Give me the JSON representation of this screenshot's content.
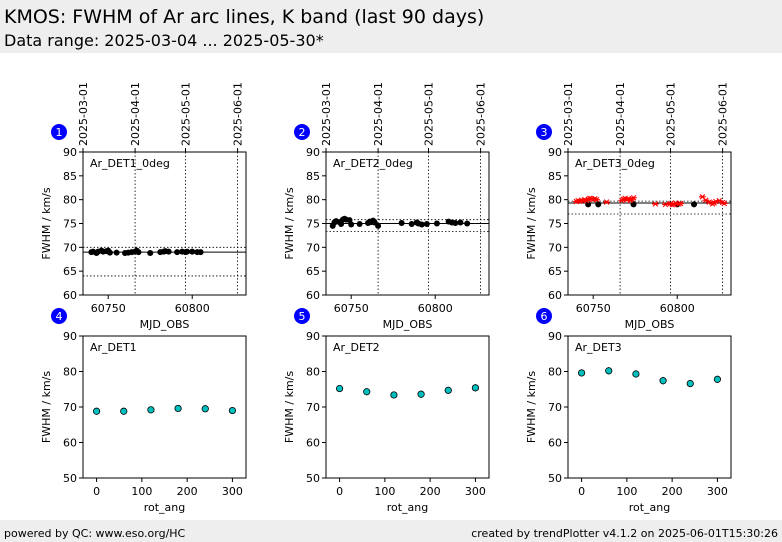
{
  "header": {
    "title": "KMOS: FWHM of Ar arc lines, K band (last 90 days)",
    "subtitle": "Data range: 2025-03-04 ... 2025-05-30*"
  },
  "footer": {
    "left": "powered by QC: www.eso.org/HC",
    "right": "created by trendPlotter v4.1.2 on 2025-06-01T15:30:26"
  },
  "colors": {
    "badge": "#0000ff",
    "points": "#000000",
    "outliers": "#ff0000",
    "ang_fill": "#00bfbf",
    "header_bg": "#eeeeee"
  },
  "chart_data": [
    {
      "type": "scatter",
      "badge": "1",
      "label": "Ar_DET1_0deg",
      "xlabel": "MJD_OBS",
      "ylabel": "FWHM / km/s",
      "xlim": [
        60735,
        60832
      ],
      "ylim": [
        60,
        90
      ],
      "xticks": [
        60750,
        60800
      ],
      "yticks": [
        60,
        65,
        70,
        75,
        80,
        85,
        90
      ],
      "date_ticks": [
        {
          "label": "2025-03-01",
          "mjd": 60735
        },
        {
          "label": "2025-04-01",
          "mjd": 60766
        },
        {
          "label": "2025-05-01",
          "mjd": 60796
        },
        {
          "label": "2025-06-01",
          "mjd": 60827
        }
      ],
      "ref_line": 69.0,
      "tol_lines": [
        64.0,
        70.0
      ],
      "points": [
        [
          60740,
          69.0
        ],
        [
          60741,
          69.1
        ],
        [
          60743,
          68.8
        ],
        [
          60744,
          69.1
        ],
        [
          60746,
          69.3
        ],
        [
          60747,
          69.1
        ],
        [
          60749,
          69.2
        ],
        [
          60750,
          69.3
        ],
        [
          60751,
          68.9
        ],
        [
          60755,
          68.9
        ],
        [
          60760,
          68.8
        ],
        [
          60762,
          68.9
        ],
        [
          60764,
          69.0
        ],
        [
          60766,
          69.1
        ],
        [
          60767,
          69.3
        ],
        [
          60768,
          69.0
        ],
        [
          60775,
          68.8
        ],
        [
          60781,
          69.0
        ],
        [
          60783,
          69.1
        ],
        [
          60784,
          69.2
        ],
        [
          60786,
          69.1
        ],
        [
          60791,
          69.0
        ],
        [
          60794,
          69.1
        ],
        [
          60796,
          69.0
        ],
        [
          60797,
          69.1
        ],
        [
          60800,
          69.1
        ],
        [
          60803,
          69.0
        ],
        [
          60805,
          69.0
        ]
      ],
      "outliers": []
    },
    {
      "type": "scatter",
      "badge": "2",
      "label": "Ar_DET2_0deg",
      "xlabel": "MJD_OBS",
      "ylabel": "FWHM / km/s",
      "xlim": [
        60735,
        60832
      ],
      "ylim": [
        60,
        90
      ],
      "xticks": [
        60750,
        60800
      ],
      "yticks": [
        60,
        65,
        70,
        75,
        80,
        85,
        90
      ],
      "date_ticks": [
        {
          "label": "2025-03-01",
          "mjd": 60735
        },
        {
          "label": "2025-04-01",
          "mjd": 60766
        },
        {
          "label": "2025-05-01",
          "mjd": 60796
        },
        {
          "label": "2025-06-01",
          "mjd": 60827
        }
      ],
      "ref_line": 75.0,
      "tol_lines": [
        73.3,
        75.8
      ],
      "points": [
        [
          60739,
          74.5
        ],
        [
          60740,
          75.2
        ],
        [
          60741,
          75.5
        ],
        [
          60743,
          75.3
        ],
        [
          60744,
          74.9
        ],
        [
          60745,
          75.8
        ],
        [
          60746,
          76.0
        ],
        [
          60747,
          75.8
        ],
        [
          60749,
          75.7
        ],
        [
          60750,
          74.8
        ],
        [
          60755,
          74.9
        ],
        [
          60760,
          75.1
        ],
        [
          60761,
          75.4
        ],
        [
          60762,
          75.3
        ],
        [
          60763,
          75.6
        ],
        [
          60764,
          75.2
        ],
        [
          60766,
          74.5
        ],
        [
          60780,
          75.1
        ],
        [
          60786,
          74.9
        ],
        [
          60789,
          75.2
        ],
        [
          60790,
          75.0
        ],
        [
          60792,
          74.8
        ],
        [
          60795,
          74.9
        ],
        [
          60801,
          75.0
        ],
        [
          60808,
          75.4
        ],
        [
          60810,
          75.2
        ],
        [
          60812,
          75.1
        ],
        [
          60815,
          75.2
        ],
        [
          60819,
          75.0
        ]
      ],
      "outliers": []
    },
    {
      "type": "scatter",
      "badge": "3",
      "label": "Ar_DET3_0deg",
      "xlabel": "MJD_OBS",
      "ylabel": "FWHM / km/s",
      "xlim": [
        60735,
        60832
      ],
      "ylim": [
        60,
        90
      ],
      "xticks": [
        60750,
        60800
      ],
      "yticks": [
        60,
        65,
        70,
        75,
        80,
        85,
        90
      ],
      "date_ticks": [
        {
          "label": "2025-03-01",
          "mjd": 60735
        },
        {
          "label": "2025-04-01",
          "mjd": 60766
        },
        {
          "label": "2025-05-01",
          "mjd": 60796
        },
        {
          "label": "2025-06-01",
          "mjd": 60827
        }
      ],
      "ref_line": 79.3,
      "tol_lines": [
        77.0,
        79.7
      ],
      "points": [
        [
          60747,
          79.0
        ],
        [
          60753,
          79.0
        ],
        [
          60774,
          79.0
        ],
        [
          60800,
          79.0
        ],
        [
          60810,
          79.0
        ]
      ],
      "outliers": [
        [
          60740,
          79.6
        ],
        [
          60741,
          79.8
        ],
        [
          60742,
          79.7
        ],
        [
          60743,
          79.9
        ],
        [
          60744,
          79.7
        ],
        [
          60745,
          80.0
        ],
        [
          60746,
          79.8
        ],
        [
          60747,
          80.1
        ],
        [
          60748,
          80.3
        ],
        [
          60749,
          80.2
        ],
        [
          60750,
          80.0
        ],
        [
          60751,
          80.2
        ],
        [
          60752,
          80.0
        ],
        [
          60758,
          79.5
        ],
        [
          60767,
          79.8
        ],
        [
          60768,
          80.1
        ],
        [
          60769,
          80.3
        ],
        [
          60770,
          80.0
        ],
        [
          60771,
          80.2
        ],
        [
          60772,
          79.8
        ],
        [
          60773,
          80.1
        ],
        [
          60774,
          80.4
        ],
        [
          60787,
          79.1
        ],
        [
          60793,
          79.0
        ],
        [
          60796,
          79.2
        ],
        [
          60797,
          78.9
        ],
        [
          60798,
          79.0
        ],
        [
          60799,
          79.3
        ],
        [
          60801,
          79.1
        ],
        [
          60802,
          79.2
        ],
        [
          60815,
          80.6
        ],
        [
          60817,
          79.9
        ],
        [
          60819,
          79.5
        ],
        [
          60821,
          79.1
        ],
        [
          60822,
          79.3
        ],
        [
          60823,
          79.6
        ],
        [
          60825,
          79.8
        ],
        [
          60827,
          79.4
        ],
        [
          60828,
          79.2
        ]
      ]
    },
    {
      "type": "scatter",
      "badge": "4",
      "label": "Ar_DET1",
      "xlabel": "rot_ang",
      "ylabel": "FWHM / km/s",
      "xlim": [
        -30,
        330
      ],
      "ylim": [
        50,
        90
      ],
      "xticks": [
        0,
        100,
        200,
        300
      ],
      "yticks": [
        50,
        60,
        70,
        80,
        90
      ],
      "points": [
        [
          0,
          68.8
        ],
        [
          60,
          68.8
        ],
        [
          120,
          69.2
        ],
        [
          180,
          69.6
        ],
        [
          240,
          69.5
        ],
        [
          300,
          69.0
        ]
      ],
      "err": [
        0.5,
        0.5,
        0.5,
        0.5,
        0.5,
        0.5
      ]
    },
    {
      "type": "scatter",
      "badge": "5",
      "label": "Ar_DET2",
      "xlabel": "rot_ang",
      "ylabel": "FWHM / km/s",
      "xlim": [
        -30,
        330
      ],
      "ylim": [
        50,
        90
      ],
      "xticks": [
        0,
        100,
        200,
        300
      ],
      "yticks": [
        50,
        60,
        70,
        80,
        90
      ],
      "points": [
        [
          0,
          75.2
        ],
        [
          60,
          74.3
        ],
        [
          120,
          73.4
        ],
        [
          180,
          73.6
        ],
        [
          240,
          74.7
        ],
        [
          300,
          75.4
        ]
      ],
      "err": [
        0.9,
        0.9,
        0.9,
        1.0,
        1.0,
        1.0
      ]
    },
    {
      "type": "scatter",
      "badge": "6",
      "label": "Ar_DET3",
      "xlabel": "rot_ang",
      "ylabel": "FWHM / km/s",
      "xlim": [
        -30,
        330
      ],
      "ylim": [
        50,
        90
      ],
      "xticks": [
        0,
        100,
        200,
        300
      ],
      "yticks": [
        50,
        60,
        70,
        80,
        90
      ],
      "points": [
        [
          0,
          79.6
        ],
        [
          60,
          80.2
        ],
        [
          120,
          79.3
        ],
        [
          180,
          77.4
        ],
        [
          240,
          76.6
        ],
        [
          300,
          77.8
        ]
      ],
      "err": [
        1.0,
        1.0,
        1.0,
        1.0,
        1.0,
        1.0
      ]
    }
  ]
}
